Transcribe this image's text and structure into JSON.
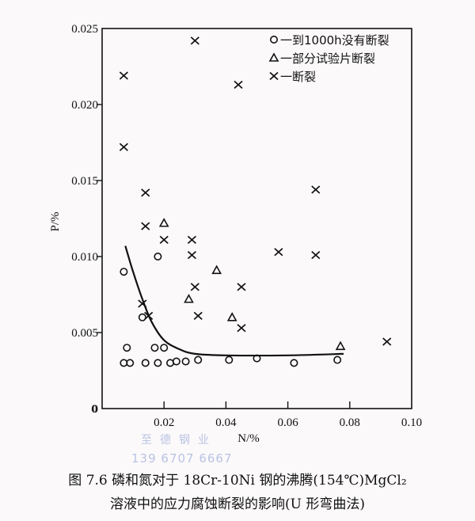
{
  "chart_data": {
    "type": "scatter",
    "title": "",
    "xlabel": "N/%",
    "ylabel": "P/%",
    "xlim": [
      0,
      0.1
    ],
    "ylim": [
      0,
      0.025
    ],
    "x_ticks": [
      "0",
      "0.02",
      "0.04",
      "0.06",
      "0.08",
      "0.10"
    ],
    "y_ticks": [
      "0",
      "0.005",
      "0.010",
      "0.015",
      "0.020",
      "0.025"
    ],
    "grid": false,
    "legend_position": "upper right",
    "legend": [
      {
        "marker": "o",
        "label": "一到1000h没有断裂"
      },
      {
        "marker": "△",
        "label": "一部分试验片断裂"
      },
      {
        "marker": "×",
        "label": "一断裂"
      }
    ],
    "series": [
      {
        "name": "到1000h没有断裂",
        "marker": "circle",
        "points": [
          [
            0.007,
            0.009
          ],
          [
            0.008,
            0.004
          ],
          [
            0.007,
            0.003
          ],
          [
            0.009,
            0.003
          ],
          [
            0.013,
            0.006
          ],
          [
            0.014,
            0.003
          ],
          [
            0.017,
            0.004
          ],
          [
            0.018,
            0.01
          ],
          [
            0.018,
            0.003
          ],
          [
            0.02,
            0.004
          ],
          [
            0.022,
            0.003
          ],
          [
            0.024,
            0.0031
          ],
          [
            0.027,
            0.0031
          ],
          [
            0.031,
            0.0032
          ],
          [
            0.041,
            0.0032
          ],
          [
            0.05,
            0.0033
          ],
          [
            0.062,
            0.003
          ],
          [
            0.076,
            0.0032
          ]
        ]
      },
      {
        "name": "一部分试验片断裂",
        "marker": "triangle",
        "points": [
          [
            0.02,
            0.0122
          ],
          [
            0.037,
            0.0091
          ],
          [
            0.028,
            0.0072
          ],
          [
            0.042,
            0.006
          ],
          [
            0.077,
            0.0041
          ]
        ]
      },
      {
        "name": "断裂",
        "marker": "x",
        "points": [
          [
            0.03,
            0.0242
          ],
          [
            0.007,
            0.0219
          ],
          [
            0.044,
            0.0213
          ],
          [
            0.007,
            0.0172
          ],
          [
            0.014,
            0.0142
          ],
          [
            0.014,
            0.012
          ],
          [
            0.02,
            0.0111
          ],
          [
            0.029,
            0.0111
          ],
          [
            0.029,
            0.0101
          ],
          [
            0.03,
            0.008
          ],
          [
            0.045,
            0.008
          ],
          [
            0.031,
            0.0061
          ],
          [
            0.013,
            0.0069
          ],
          [
            0.015,
            0.0061
          ],
          [
            0.045,
            0.0053
          ],
          [
            0.057,
            0.0103
          ],
          [
            0.069,
            0.0101
          ],
          [
            0.069,
            0.0144
          ],
          [
            0.092,
            0.0044
          ]
        ]
      }
    ],
    "boundary_curve": {
      "description": "critical boundary line",
      "points": [
        [
          0.0075,
          0.0107
        ],
        [
          0.01,
          0.009
        ],
        [
          0.013,
          0.0072
        ],
        [
          0.016,
          0.0057
        ],
        [
          0.02,
          0.0045
        ],
        [
          0.025,
          0.0039
        ],
        [
          0.03,
          0.0036
        ],
        [
          0.04,
          0.0035
        ],
        [
          0.06,
          0.0035
        ],
        [
          0.078,
          0.0036
        ]
      ]
    }
  },
  "caption": {
    "line1": "图 7.6   磷和氮对于 18Cr-10Ni 钢的沸腾(154℃)MgCl₂",
    "line2": "溶液中的应力腐蚀断裂的影响(U 形弯曲法)"
  },
  "watermark": {
    "line1": "至德钢业",
    "line2": "139 6707 6667"
  }
}
